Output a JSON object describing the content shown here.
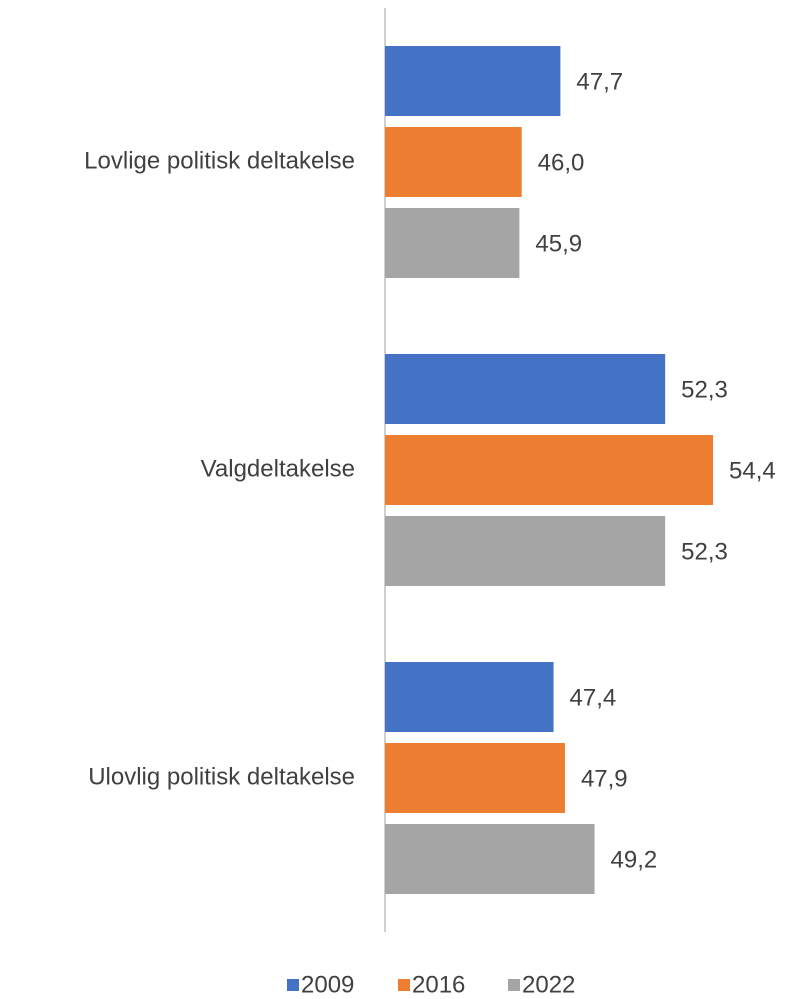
{
  "chart_data": {
    "type": "bar",
    "orientation": "horizontal",
    "categories": [
      "Lovlige politisk deltakelse",
      "Valgdeltakelse",
      "Ulovlig politisk deltakelse"
    ],
    "series": [
      {
        "name": "2009",
        "color": "#4472c4",
        "values": [
          47.7,
          52.3,
          47.4
        ],
        "value_labels": [
          "47,7",
          "52,3",
          "47,4"
        ]
      },
      {
        "name": "2016",
        "color": "#ed7d31",
        "values": [
          46.0,
          54.4,
          47.9
        ],
        "value_labels": [
          "46,0",
          "54,4",
          "47,9"
        ]
      },
      {
        "name": "2022",
        "color": "#a5a5a5",
        "values": [
          45.9,
          52.3,
          49.2
        ],
        "value_labels": [
          "45,9",
          "52,3",
          "49,2"
        ]
      }
    ],
    "xlim": [
      40,
      58
    ],
    "legend": "bottom"
  }
}
